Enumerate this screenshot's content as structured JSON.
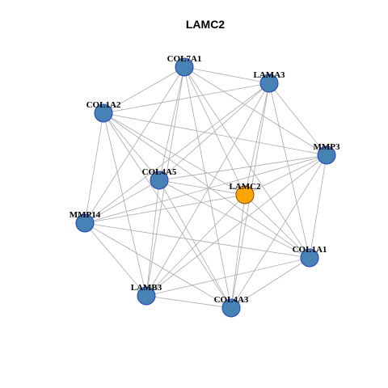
{
  "title": "LAMC2",
  "nodes": [
    {
      "label": "COL7A1"
    },
    {
      "label": "LAMA3"
    },
    {
      "label": "COL1A2"
    },
    {
      "label": "MMP3"
    },
    {
      "label": "COL4A5"
    },
    {
      "label": "LAMC2"
    },
    {
      "label": "MMP14"
    },
    {
      "label": "COL1A1"
    },
    {
      "label": "LAMB3"
    },
    {
      "label": "COL4A3"
    }
  ]
}
